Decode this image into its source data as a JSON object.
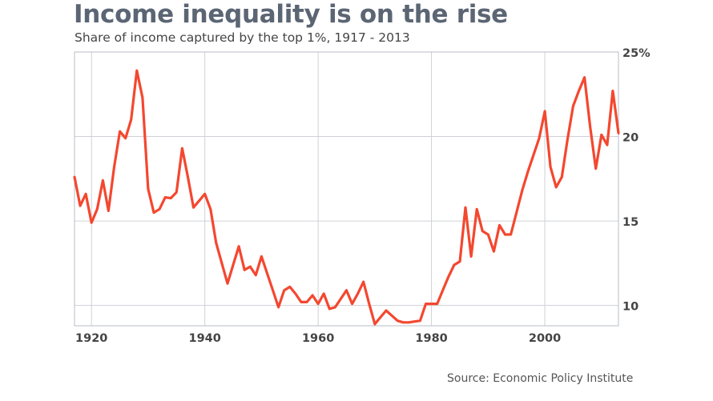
{
  "chart_data": {
    "type": "line",
    "title": "Income inequality is on the rise",
    "subtitle": "Share of income captured by the top 1%, 1917 - 2013",
    "source": "Source: Economic Policy Institute",
    "xlabel": "",
    "ylabel": "",
    "xlim": [
      1917,
      2013
    ],
    "ylim": [
      8.8,
      25
    ],
    "x_ticks": [
      1920,
      1940,
      1960,
      1980,
      2000
    ],
    "x_tick_labels": [
      "1920",
      "1940",
      "1960",
      "1980",
      "2000"
    ],
    "y_ticks": [
      10,
      15,
      20,
      25
    ],
    "y_tick_labels": [
      "10",
      "15",
      "20",
      "25%"
    ],
    "y_axis_side": "right",
    "grid": true,
    "line_color": "#f4472f",
    "x": [
      1917,
      1918,
      1919,
      1920,
      1921,
      1922,
      1923,
      1924,
      1925,
      1926,
      1927,
      1928,
      1929,
      1930,
      1931,
      1932,
      1933,
      1934,
      1935,
      1936,
      1937,
      1938,
      1939,
      1940,
      1941,
      1942,
      1943,
      1944,
      1945,
      1946,
      1947,
      1948,
      1949,
      1950,
      1951,
      1952,
      1953,
      1954,
      1955,
      1956,
      1957,
      1958,
      1959,
      1960,
      1961,
      1962,
      1963,
      1964,
      1965,
      1966,
      1967,
      1968,
      1969,
      1970,
      1971,
      1972,
      1973,
      1974,
      1975,
      1976,
      1977,
      1978,
      1979,
      1980,
      1981,
      1982,
      1983,
      1984,
      1985,
      1986,
      1987,
      1988,
      1989,
      1990,
      1991,
      1992,
      1993,
      1994,
      1995,
      1996,
      1997,
      1998,
      1999,
      2000,
      2001,
      2002,
      2003,
      2004,
      2005,
      2006,
      2007,
      2008,
      2009,
      2010,
      2011,
      2012,
      2013
    ],
    "values": [
      17.6,
      15.9,
      16.6,
      14.9,
      15.7,
      17.4,
      15.6,
      18.2,
      20.3,
      19.9,
      21.0,
      23.9,
      22.3,
      16.9,
      15.5,
      15.7,
      16.4,
      16.35,
      16.7,
      19.3,
      17.6,
      15.8,
      16.2,
      16.6,
      15.7,
      13.7,
      12.5,
      11.3,
      12.4,
      13.5,
      12.1,
      12.3,
      11.8,
      12.9,
      11.9,
      10.9,
      9.9,
      10.9,
      11.1,
      10.7,
      10.2,
      10.2,
      10.6,
      10.1,
      10.7,
      9.8,
      9.9,
      10.4,
      10.9,
      10.1,
      10.7,
      11.4,
      10.1,
      8.9,
      9.3,
      9.7,
      9.4,
      9.1,
      9.0,
      9.0,
      9.05,
      9.1,
      10.1,
      10.1,
      10.1,
      10.9,
      11.7,
      12.4,
      12.6,
      15.8,
      12.9,
      15.7,
      14.4,
      14.2,
      13.2,
      14.75,
      14.2,
      14.2,
      15.5,
      16.8,
      17.9,
      18.9,
      19.9,
      21.5,
      18.2,
      17.0,
      17.6,
      19.8,
      21.8,
      22.7,
      23.5,
      20.6,
      18.1,
      20.1,
      19.5,
      22.7,
      20.2
    ]
  }
}
